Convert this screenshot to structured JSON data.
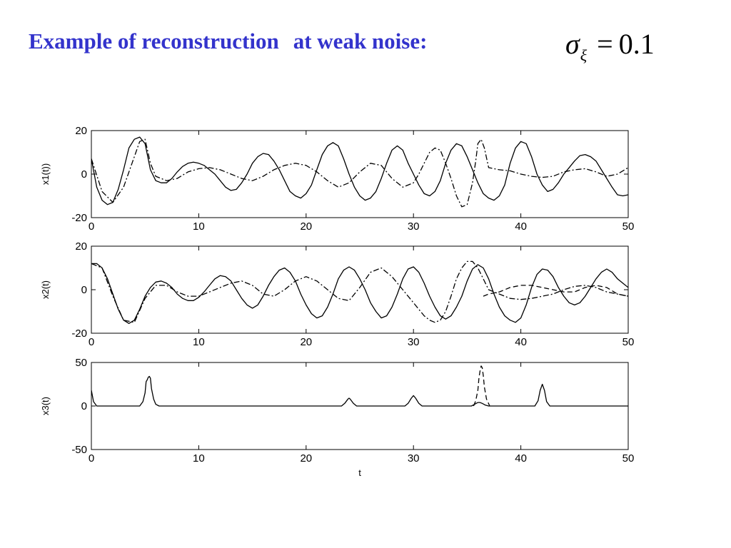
{
  "slide": {
    "title_part1": "Example of reconstruction",
    "title_part2": "at weak noise:",
    "formula": {
      "symbol": "σ",
      "subscript": "ξ",
      "operator": "=",
      "value": "0.1"
    },
    "title_color": "#3333cc"
  },
  "chart_data": [
    {
      "type": "line",
      "ylabel": "x1(t))",
      "xlabel": "",
      "xlim": [
        0,
        50
      ],
      "ylim": [
        -20,
        20
      ],
      "xticks": [
        0,
        10,
        20,
        30,
        40,
        50
      ],
      "yticks": [
        -20,
        0,
        20
      ],
      "grid": false,
      "series": [
        {
          "style": "solid",
          "x": [
            0,
            0.5,
            1,
            1.5,
            2,
            2.5,
            3,
            3.5,
            4,
            4.5,
            5,
            5.5,
            6,
            6.5,
            7,
            7.5,
            8,
            8.5,
            9,
            9.5,
            10,
            10.5,
            11,
            11.5,
            12,
            12.5,
            13,
            13.5,
            14,
            14.5,
            15,
            15.5,
            16,
            16.5,
            17,
            17.5,
            18,
            18.5,
            19,
            19.5,
            20,
            20.5,
            21,
            21.5,
            22,
            22.5,
            23,
            23.5,
            24,
            24.5,
            25,
            25.5,
            26,
            26.5,
            27,
            27.5,
            28,
            28.5,
            29,
            29.5,
            30,
            30.5,
            31,
            31.5,
            32,
            32.5,
            33,
            33.5,
            34,
            34.5,
            35,
            35.5,
            36,
            36.5,
            37,
            37.5,
            38,
            38.5,
            39,
            39.5,
            40,
            40.5,
            41,
            41.5,
            42,
            42.5,
            43,
            43.5,
            44,
            44.5,
            45,
            45.5,
            46,
            46.5,
            47,
            47.5,
            48,
            48.5,
            49,
            49.5,
            50
          ],
          "y": [
            7,
            -6,
            -12,
            -14,
            -13,
            -7,
            2,
            12,
            16,
            17,
            14,
            2,
            -3,
            -4,
            -4,
            -2,
            1,
            3.5,
            5,
            5.5,
            5,
            4,
            2,
            0,
            -3,
            -6,
            -7.5,
            -7,
            -4,
            0,
            5,
            8,
            9.5,
            9,
            6,
            2,
            -3,
            -8,
            -10,
            -11,
            -9,
            -5,
            2,
            9,
            13,
            14.5,
            13,
            7,
            0,
            -6,
            -10,
            -12,
            -11,
            -8,
            -2,
            5,
            11,
            13,
            11,
            5,
            0,
            -5,
            -9,
            -10,
            -8,
            -3,
            5,
            11,
            14,
            13,
            8,
            2,
            -4,
            -9,
            -11,
            -12,
            -10,
            -5,
            5,
            12,
            15,
            14,
            8,
            0,
            -5,
            -8,
            -7,
            -4,
            0,
            3,
            6,
            8.5,
            9,
            8,
            6,
            2,
            -2,
            -6,
            -9.5,
            -10,
            -9.5
          ]
        },
        {
          "style": "dash-dot",
          "x": [
            0,
            1,
            2,
            3,
            4,
            4.5,
            5,
            5.5,
            6,
            7,
            8,
            9,
            10,
            11,
            12,
            13,
            14,
            15,
            16,
            17,
            18,
            19,
            20,
            21,
            22,
            23,
            24,
            25,
            26,
            27,
            28,
            29,
            30,
            30.5,
            31,
            31.5,
            32,
            32.5,
            33,
            33.5,
            34,
            34.5,
            35,
            35.5,
            35.8,
            36,
            36.3,
            36.6,
            37,
            38,
            39,
            40,
            41,
            42,
            43,
            44,
            45,
            46,
            47,
            48,
            49,
            50
          ],
          "y": [
            7,
            -8,
            -13,
            -6,
            8,
            15,
            16,
            5,
            -1,
            -3,
            -2,
            1,
            2.5,
            3,
            2,
            0,
            -2,
            -3,
            -1,
            2,
            4,
            5,
            4,
            1,
            -3,
            -6,
            -4,
            1,
            5,
            4,
            -2,
            -6,
            -4,
            0,
            5,
            10,
            12,
            11,
            5,
            -2,
            -10,
            -15,
            -14,
            -4,
            6,
            14,
            16,
            12,
            3,
            2,
            1.5,
            0,
            -1,
            -1.5,
            -1,
            1,
            2,
            2.5,
            1,
            -1,
            0,
            3
          ]
        }
      ]
    },
    {
      "type": "line",
      "ylabel": "x2(t)",
      "xlabel": "",
      "xlim": [
        0,
        50
      ],
      "ylim": [
        -20,
        20
      ],
      "xticks": [
        0,
        10,
        20,
        30,
        40,
        50
      ],
      "yticks": [
        -20,
        0,
        20
      ],
      "grid": false,
      "series": [
        {
          "style": "solid",
          "x": [
            0,
            0.5,
            1,
            1.5,
            2,
            2.5,
            3,
            3.5,
            4,
            4.5,
            5,
            5.5,
            6,
            6.5,
            7,
            7.5,
            8,
            8.5,
            9,
            9.5,
            10,
            10.5,
            11,
            11.5,
            12,
            12.5,
            13,
            13.5,
            14,
            14.5,
            15,
            15.5,
            16,
            16.5,
            17,
            17.5,
            18,
            18.5,
            19,
            19.5,
            20,
            20.5,
            21,
            21.5,
            22,
            22.5,
            23,
            23.5,
            24,
            24.5,
            25,
            25.5,
            26,
            26.5,
            27,
            27.5,
            28,
            28.5,
            29,
            29.5,
            30,
            30.5,
            31,
            31.5,
            32,
            32.5,
            33,
            33.5,
            34,
            34.5,
            35,
            35.5,
            36,
            36.5,
            37,
            37.5,
            38,
            38.5,
            39,
            39.5,
            40,
            40.5,
            41,
            41.5,
            42,
            42.5,
            43,
            43.5,
            44,
            44.5,
            45,
            45.5,
            46,
            46.5,
            47,
            47.5,
            48,
            48.5,
            49,
            49.5,
            50
          ],
          "y": [
            12,
            12,
            10,
            5,
            -2,
            -9,
            -14,
            -15.5,
            -14,
            -9,
            -3,
            1,
            3.5,
            4,
            3,
            1,
            -2,
            -4,
            -5,
            -5,
            -3.5,
            -1,
            2,
            5,
            6.5,
            6,
            4,
            0,
            -4,
            -7,
            -8.5,
            -7,
            -3,
            2,
            6,
            9,
            10,
            8,
            4,
            -2,
            -7,
            -11,
            -13,
            -12,
            -8,
            -2,
            5,
            9,
            10.5,
            9,
            5,
            0,
            -6,
            -10,
            -13,
            -12,
            -8,
            -2,
            5,
            9.5,
            10.5,
            8,
            3,
            -3,
            -8,
            -12,
            -13.5,
            -12,
            -8,
            -3,
            4,
            9.5,
            11.5,
            10,
            5,
            -2,
            -8,
            -12,
            -14,
            -15,
            -13,
            -7,
            1,
            7,
            9.5,
            9,
            6,
            1,
            -3,
            -6,
            -7,
            -6,
            -3,
            1,
            5,
            8,
            9.5,
            8,
            5,
            3,
            1
          ]
        },
        {
          "style": "dash-dot",
          "x": [
            0,
            1,
            2,
            3,
            4,
            5,
            6,
            7,
            8,
            9,
            10,
            11,
            12,
            13,
            14,
            15,
            16,
            17,
            18,
            19,
            20,
            21,
            22,
            23,
            24,
            25,
            26,
            27,
            28,
            29,
            30,
            31,
            31.5,
            32,
            32.5,
            33,
            33.5,
            34,
            34.5,
            35,
            35.5,
            36,
            36.5,
            37,
            38,
            39,
            40,
            41,
            42,
            43,
            44,
            45,
            46,
            47,
            48,
            49,
            50
          ],
          "y": [
            12,
            10,
            -3,
            -14,
            -15,
            -4,
            2,
            2,
            -1,
            -3,
            -3,
            -1,
            1,
            3,
            4,
            2,
            -2,
            -3,
            0,
            4,
            6,
            4,
            0,
            -4,
            -5,
            1,
            8,
            10,
            6,
            0,
            -6,
            -12,
            -14,
            -15,
            -14,
            -10,
            -3,
            5,
            10,
            13,
            13,
            10,
            5,
            0,
            -2,
            -4,
            -4.5,
            -4,
            -3,
            -2,
            0,
            1.5,
            2,
            1,
            -1,
            -2,
            -3
          ]
        },
        {
          "style": "dashed",
          "x": [
            36.5,
            37,
            38,
            39,
            40,
            41,
            42,
            43,
            44,
            45,
            46,
            47,
            48,
            49,
            50
          ],
          "y": [
            -3,
            -2,
            -1,
            1,
            2,
            2,
            1,
            0,
            -1,
            -1,
            1,
            2,
            1,
            -2,
            -3
          ]
        }
      ]
    },
    {
      "type": "line",
      "ylabel": "x3(t)",
      "xlabel": "t",
      "xlim": [
        0,
        50
      ],
      "ylim": [
        -50,
        50
      ],
      "xticks": [
        0,
        10,
        20,
        30,
        40,
        50
      ],
      "yticks": [
        -50,
        0,
        50
      ],
      "grid": false,
      "series": [
        {
          "style": "solid",
          "x": [
            0,
            0.2,
            0.5,
            1,
            4.5,
            4.8,
            5,
            5.1,
            5.2,
            5.3,
            5.4,
            5.5,
            5.6,
            5.8,
            6,
            6.3,
            23.3,
            23.6,
            23.9,
            24,
            24.1,
            24.4,
            24.7,
            29.2,
            29.5,
            29.8,
            30,
            30.2,
            30.5,
            30.8,
            35.4,
            35.7,
            36,
            36.2,
            36.4,
            36.7,
            37,
            41.3,
            41.6,
            41.8,
            42,
            42.2,
            42.4,
            42.7,
            50
          ],
          "y": [
            18,
            5,
            0,
            0,
            0,
            5,
            15,
            28,
            30,
            33,
            34,
            32,
            20,
            8,
            2,
            0,
            0,
            3,
            8,
            9,
            8,
            3,
            0,
            0,
            3,
            9,
            12,
            9,
            3,
            0,
            0,
            2,
            4,
            4,
            3,
            1,
            0,
            0,
            6,
            18,
            25,
            18,
            5,
            0,
            0
          ]
        },
        {
          "style": "dashed",
          "x": [
            35.6,
            35.8,
            36,
            36.1,
            36.2,
            36.3,
            36.4,
            36.5,
            36.6,
            36.8,
            37.1
          ],
          "y": [
            0,
            6,
            18,
            32,
            40,
            46,
            44,
            35,
            22,
            8,
            0
          ]
        }
      ]
    }
  ]
}
